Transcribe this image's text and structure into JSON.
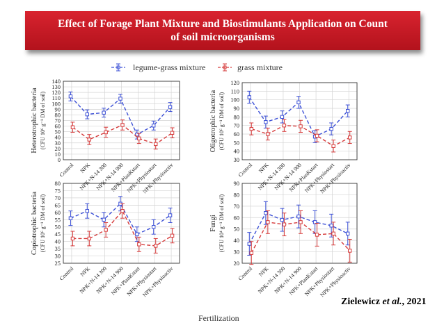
{
  "header": {
    "title_line1": "Effect of Forage Plant Mixture and Biostimulants Application on Count",
    "title_line2": "of soil microorganisms"
  },
  "citation": {
    "author": "Zielewicz",
    "etal": "et al.",
    "year": ", 2021"
  },
  "legend": {
    "items": [
      {
        "label": "legume-grass mixture",
        "color": "#3b4fd6"
      },
      {
        "label": "grass mixture",
        "color": "#d63a3a"
      }
    ]
  },
  "shared_xlabel": "Fertilization",
  "chart_data": [
    {
      "type": "line",
      "ylabel_main": "Heterotrophic bacteria",
      "ylabel_unit": "(CFU 10⁶ g⁻¹ DM of soil)",
      "ylim": [
        0,
        140
      ],
      "yticks": [
        0,
        10,
        20,
        30,
        40,
        50,
        60,
        70,
        80,
        90,
        100,
        110,
        120,
        130,
        140
      ],
      "grid": true,
      "categories": [
        "Control",
        "NPK",
        "NPK+N-14 300",
        "NPK+N-14 900",
        "NPK+PlanKstart",
        "NPK+Physiostart",
        "NPK+Physioactiv"
      ],
      "series": [
        {
          "name": "legume-grass mixture",
          "values": [
            113,
            81,
            84,
            109,
            45,
            61,
            94
          ],
          "errors": [
            8,
            8,
            8,
            8,
            8,
            8,
            8
          ]
        },
        {
          "name": "grass mixture",
          "values": [
            58,
            36,
            49,
            62,
            38,
            28,
            48
          ],
          "errors": [
            9,
            9,
            9,
            9,
            9,
            9,
            9
          ]
        }
      ]
    },
    {
      "type": "line",
      "ylabel_main": "Oligotrophic bacteria",
      "ylabel_unit": "(CFU 10⁶ g⁻¹ DM of soil)",
      "ylim": [
        30,
        120
      ],
      "yticks": [
        30,
        40,
        50,
        60,
        70,
        80,
        90,
        100,
        110,
        120
      ],
      "grid": true,
      "categories": [
        "Control",
        "NPK",
        "NPK+N-14 300",
        "NPK+N-14 900",
        "NPK+PlanKstart",
        "NPK+Physiostart",
        "NPK+Physioactiv"
      ],
      "series": [
        {
          "name": "legume-grass mixture",
          "values": [
            103,
            74,
            80,
            97,
            57,
            66,
            87
          ],
          "errors": [
            7,
            7,
            7,
            7,
            7,
            7,
            7
          ]
        },
        {
          "name": "grass mixture",
          "values": [
            66,
            60,
            70,
            69,
            58,
            46,
            56
          ],
          "errors": [
            7,
            7,
            7,
            7,
            7,
            7,
            7
          ]
        }
      ]
    },
    {
      "type": "line",
      "ylabel_main": "Copiotrophic bacteria",
      "ylabel_unit": "(CFU 10⁶ g⁻¹ DM of soil)",
      "ylim": [
        25,
        80
      ],
      "yticks": [
        25,
        30,
        35,
        40,
        45,
        50,
        55,
        60,
        65,
        70,
        75,
        80
      ],
      "grid": true,
      "categories": [
        "Control",
        "NPK",
        "NPK+N-14 300",
        "NPK+N-14 900",
        "NPK+PlanKstart",
        "NPK+Physiostart",
        "NPK+Physioactiv"
      ],
      "series": [
        {
          "name": "legume-grass mixture",
          "values": [
            56,
            61,
            55,
            66,
            45,
            50,
            58
          ],
          "errors": [
            5,
            5,
            5,
            5,
            5,
            5,
            5
          ]
        },
        {
          "name": "grass mixture",
          "values": [
            42,
            42,
            48,
            61,
            38,
            37,
            44
          ],
          "errors": [
            5,
            5,
            5,
            5,
            5,
            5,
            5
          ]
        }
      ]
    },
    {
      "type": "line",
      "ylabel_main": "Fungi",
      "ylabel_unit": "(CFU 10⁴ g⁻¹ DM of soil)",
      "ylim": [
        20,
        90
      ],
      "yticks": [
        20,
        30,
        40,
        50,
        60,
        70,
        80,
        90
      ],
      "grid": true,
      "categories": [
        "Control",
        "NPK",
        "NPK+N-14 300",
        "NPK+N-14 900",
        "NPK+PlanKstart",
        "NPK+Physiostart",
        "NPK+Physioactiv"
      ],
      "series": [
        {
          "name": "legume-grass mixture",
          "values": [
            37,
            64,
            58,
            61,
            56,
            53,
            46
          ],
          "errors": [
            10,
            10,
            10,
            10,
            10,
            10,
            10
          ]
        },
        {
          "name": "grass mixture",
          "values": [
            29,
            56,
            54,
            56,
            45,
            46,
            31
          ],
          "errors": [
            10,
            10,
            10,
            10,
            10,
            10,
            10
          ]
        }
      ]
    }
  ]
}
